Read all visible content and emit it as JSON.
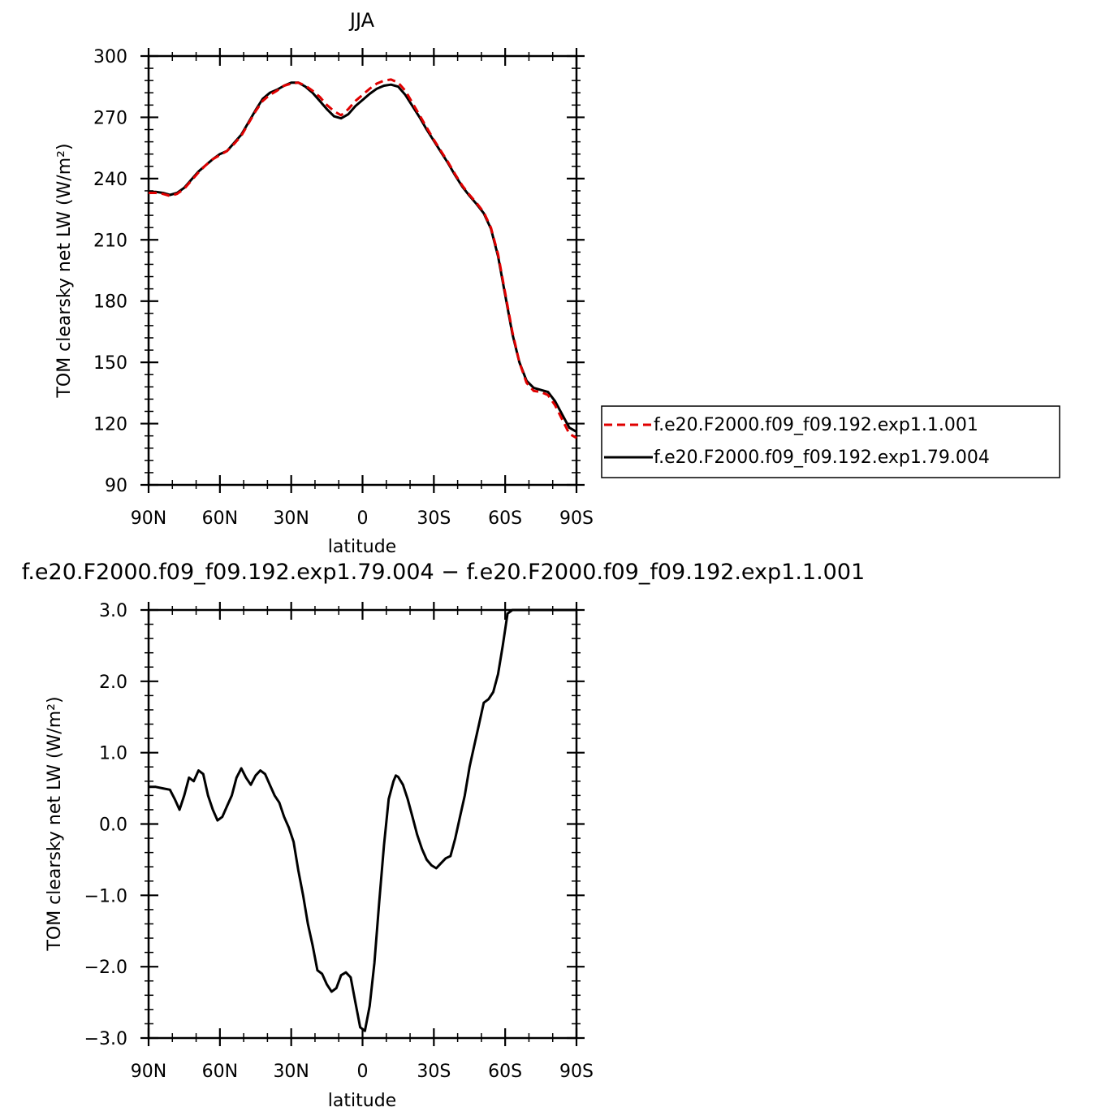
{
  "chart_data": [
    {
      "type": "line",
      "title": "JJA",
      "xlabel": "latitude",
      "ylabel": "TOM clearsky net LW (W/m²)",
      "xlim": [
        90,
        -90
      ],
      "ylim": [
        90,
        300
      ],
      "xticks": [
        90,
        60,
        30,
        0,
        -30,
        -60,
        -90
      ],
      "xtick_labels": [
        "90N",
        "60N",
        "30N",
        "0",
        "30S",
        "60S",
        "90S"
      ],
      "yticks": [
        90,
        120,
        150,
        180,
        210,
        240,
        270,
        300
      ],
      "ytick_labels": [
        "90",
        "120",
        "150",
        "180",
        "210",
        "240",
        "270",
        "300"
      ],
      "legend": {
        "placement": "right"
      },
      "series": [
        {
          "name": "f.e20.F2000.f09_f09.192.exp1.1.001",
          "color": "#e00000",
          "dash": "dashed",
          "x": [
            90,
            87,
            84,
            81,
            78,
            75,
            72,
            69,
            66,
            63,
            60,
            57,
            54,
            51,
            48,
            45,
            42,
            39,
            36,
            33,
            30,
            27,
            24,
            21,
            18,
            15,
            12,
            9,
            6,
            3,
            0,
            -3,
            -6,
            -9,
            -12,
            -15,
            -18,
            -21,
            -24,
            -27,
            -30,
            -33,
            -36,
            -39,
            -42,
            -45,
            -48,
            -51,
            -54,
            -57,
            -60,
            -63,
            -66,
            -69,
            -72,
            -75,
            -78,
            -81,
            -84,
            -87,
            -90
          ],
          "y": [
            233,
            233,
            232.5,
            231.5,
            232.5,
            235,
            239,
            243,
            246.5,
            249.5,
            251.5,
            253.5,
            257,
            261,
            267,
            273,
            278,
            281,
            283,
            285.5,
            286.5,
            287,
            285.5,
            283,
            280,
            276,
            273,
            271,
            274,
            278,
            281,
            284,
            286.5,
            288,
            288.5,
            287,
            283,
            277,
            271,
            265,
            259,
            253.5,
            248,
            242,
            236.5,
            232,
            228,
            223.5,
            216,
            203,
            184,
            165,
            150,
            140,
            136,
            135.5,
            134,
            129,
            122,
            115,
            113
          ]
        },
        {
          "name": "f.e20.F2000.f09_f09.192.exp1.79.004",
          "color": "#000000",
          "dash": "solid",
          "x": [
            90,
            87,
            84,
            81,
            78,
            75,
            72,
            69,
            66,
            63,
            60,
            57,
            54,
            51,
            48,
            45,
            42,
            39,
            36,
            33,
            30,
            27,
            24,
            21,
            18,
            15,
            12,
            9,
            6,
            3,
            0,
            -3,
            -6,
            -9,
            -12,
            -15,
            -18,
            -21,
            -24,
            -27,
            -30,
            -33,
            -36,
            -39,
            -42,
            -45,
            -48,
            -51,
            -54,
            -57,
            -60,
            -63,
            -66,
            -69,
            -72,
            -75,
            -78,
            -81,
            -84,
            -87,
            -90
          ],
          "y": [
            233.5,
            233.5,
            233,
            232,
            233,
            235.5,
            239.5,
            243.5,
            246.5,
            249.5,
            252,
            253.5,
            257.5,
            261.5,
            267.5,
            273.5,
            279,
            282,
            283.5,
            285.5,
            287,
            287,
            285,
            282,
            278,
            274,
            270.5,
            269.5,
            271.5,
            275.5,
            278.5,
            281.5,
            284,
            285.5,
            286,
            285,
            281,
            275.5,
            270,
            264,
            258.5,
            253,
            247.5,
            241.5,
            236,
            231.5,
            227.5,
            223,
            215.5,
            202,
            183,
            164,
            150,
            141,
            137.5,
            136.5,
            135.5,
            131,
            124.5,
            118,
            116
          ]
        }
      ]
    },
    {
      "type": "line",
      "title": "f.e20.F2000.f09_f09.192.exp1.79.004 − f.e20.F2000.f09_f09.192.exp1.1.001",
      "xlabel": "latitude",
      "ylabel": "TOM clearsky net LW (W/m²)",
      "xlim": [
        90,
        -90
      ],
      "ylim": [
        -3.0,
        3.0
      ],
      "xticks": [
        90,
        60,
        30,
        0,
        -30,
        -60,
        -90
      ],
      "xtick_labels": [
        "90N",
        "60N",
        "30N",
        "0",
        "30S",
        "60S",
        "90S"
      ],
      "yticks": [
        -3.0,
        -2.0,
        -1.0,
        0.0,
        1.0,
        2.0,
        3.0
      ],
      "ytick_labels": [
        "−3.0",
        "−2.0",
        "−1.0",
        "0.0",
        "1.0",
        "2.0",
        "3.0"
      ],
      "series": [
        {
          "color": "#000000",
          "dash": "solid",
          "x": [
            90,
            87,
            84,
            81,
            79,
            77,
            75,
            73,
            71,
            69,
            67,
            65,
            63,
            61,
            59,
            57,
            55,
            53,
            51,
            49,
            47,
            45,
            43,
            41,
            39,
            37,
            35,
            33,
            31,
            29,
            27,
            25,
            23,
            21,
            19,
            17,
            15,
            13,
            11,
            9,
            7,
            5,
            3,
            1,
            -1,
            -3,
            -5,
            -7,
            -9,
            -11,
            -13,
            -14,
            -15,
            -17,
            -19,
            -21,
            -23,
            -25,
            -27,
            -29,
            -31,
            -33,
            -35,
            -37,
            -39,
            -41,
            -43,
            -45,
            -47,
            -49,
            -51,
            -53,
            -55,
            -57,
            -59,
            -61,
            -63,
            -65,
            -67,
            -69,
            -71,
            -73,
            -75,
            -77,
            -79,
            -81,
            -83,
            -85,
            -87,
            -89,
            -90
          ],
          "y": [
            0.52,
            0.52,
            0.5,
            0.48,
            0.35,
            0.2,
            0.4,
            0.65,
            0.6,
            0.75,
            0.7,
            0.4,
            0.2,
            0.05,
            0.1,
            0.25,
            0.4,
            0.65,
            0.78,
            0.65,
            0.55,
            0.68,
            0.75,
            0.7,
            0.55,
            0.4,
            0.3,
            0.1,
            -0.05,
            -0.25,
            -0.65,
            -1.0,
            -1.4,
            -1.7,
            -2.05,
            -2.1,
            -2.25,
            -2.35,
            -2.3,
            -2.12,
            -2.08,
            -2.15,
            -2.5,
            -2.85,
            -2.9,
            -2.55,
            -1.95,
            -1.1,
            -0.3,
            0.35,
            0.6,
            0.68,
            0.66,
            0.55,
            0.35,
            0.1,
            -0.15,
            -0.35,
            -0.5,
            -0.58,
            -0.62,
            -0.55,
            -0.48,
            -0.45,
            -0.2,
            0.1,
            0.4,
            0.8,
            1.1,
            1.4,
            1.7,
            1.75,
            1.85,
            2.1,
            2.5,
            2.95,
            3.0,
            3.0,
            3.0,
            3.0,
            3.0,
            3.0,
            3.0,
            3.0,
            3.0,
            3.0,
            3.0,
            3.0,
            3.0,
            3.0,
            3.0
          ]
        }
      ]
    }
  ]
}
